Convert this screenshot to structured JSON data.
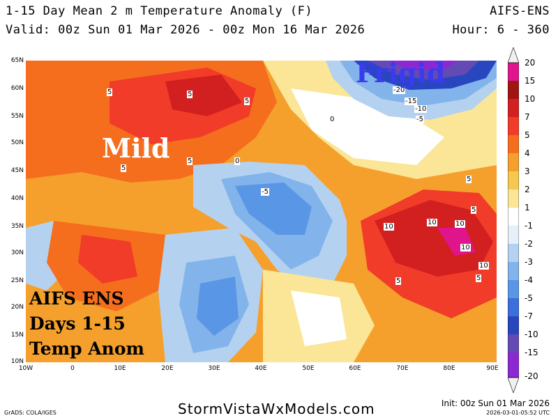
{
  "header": {
    "title": "1-15 Day Mean 2 m Temperature Anomaly (F)",
    "valid": "Valid: 00z Sun 01 Mar 2026 - 00z Mon 16 Mar 2026",
    "model": "AIFS-ENS",
    "hour": "Hour: 6 - 360"
  },
  "map": {
    "lat_labels": [
      "65N",
      "60N",
      "55N",
      "50N",
      "45N",
      "40N",
      "35N",
      "30N",
      "25N",
      "20N",
      "15N",
      "10N"
    ],
    "lon_labels": [
      "10W",
      "0",
      "10E",
      "20E",
      "30E",
      "40E",
      "50E",
      "60E",
      "70E",
      "80E",
      "90E"
    ],
    "annotations": {
      "mild": "Mild",
      "frigid": "Frigid",
      "block_line1": "AIFS ENS",
      "block_line2": "Days 1-15",
      "block_line3": "Temp Anom"
    },
    "contour_labels": [
      "5",
      "5",
      "5",
      "5",
      "5",
      "0",
      "-5",
      "5",
      "5",
      "10",
      "10",
      "10",
      "10",
      "10",
      "5",
      "5",
      "-20",
      "-15",
      "-10",
      "-5",
      "0"
    ]
  },
  "colorbar": {
    "levels": [
      "20",
      "15",
      "10",
      "7",
      "5",
      "4",
      "3",
      "2",
      "1",
      "-1",
      "-2",
      "-3",
      "-4",
      "-5",
      "-7",
      "-10",
      "-15",
      "-20"
    ],
    "colors": [
      "#f0f0f0",
      "#e0148c",
      "#a01414",
      "#d22020",
      "#f03c28",
      "#f56e1e",
      "#f5a02d",
      "#f5c850",
      "#fae696",
      "#ffffff",
      "#e6f0fa",
      "#b4d2f0",
      "#82b4eb",
      "#5a96e6",
      "#3c6edc",
      "#2846be",
      "#644ab4",
      "#8c28d2",
      "#f0f0f0"
    ]
  },
  "footer": {
    "grads": "GrADS: COLA/IGES",
    "site": "StormVistaWxModels.com",
    "init": "Init: 00z Sun 01 Mar 2026",
    "stamp": "2026-03-01-05:52 UTC"
  }
}
